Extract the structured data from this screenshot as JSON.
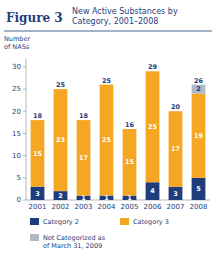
{
  "chart_data": {
    "type": "bar",
    "stacked": true,
    "data_labels": true,
    "grid": false,
    "legend": "bottom",
    "title": "Figure 3",
    "subtitle": "New Active Substances by\nCategory, 2001–2008",
    "y_label": "Number\nof NASs",
    "categories": [
      "2001",
      "2002",
      "2003",
      "2004",
      "2005",
      "2006",
      "2007",
      "2008"
    ],
    "series": [
      {
        "name": "Category 2",
        "color": "#1f3d7a",
        "values": [
          3,
          2,
          1,
          1,
          1,
          4,
          3,
          5
        ]
      },
      {
        "name": "Category 3",
        "color": "#f5a623",
        "values": [
          15,
          23,
          17,
          25,
          15,
          25,
          17,
          19
        ]
      },
      {
        "name": "Not Categorized as\nof March 31, 2009",
        "color": "#b0b8c8",
        "values": [
          0,
          0,
          0,
          0,
          0,
          0,
          0,
          2
        ]
      }
    ],
    "totals": [
      18,
      25,
      18,
      25,
      16,
      29,
      20,
      26
    ],
    "ylim": [
      0,
      32
    ],
    "yticks": [
      0,
      5,
      10,
      15,
      20,
      25,
      30
    ]
  }
}
